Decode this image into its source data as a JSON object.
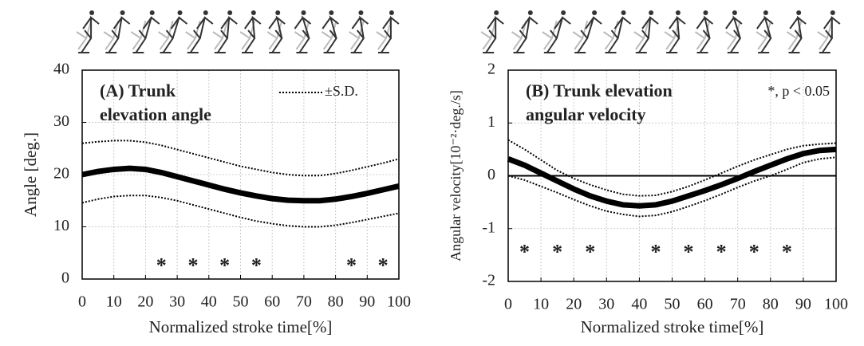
{
  "chart_data": [
    {
      "type": "line",
      "title": [
        "(A) Trunk",
        "elevation angle"
      ],
      "x_label": "Normalized stroke time[%]",
      "y_label": "Angle [deg.]",
      "x": [
        0,
        5,
        10,
        15,
        20,
        25,
        30,
        35,
        40,
        45,
        50,
        55,
        60,
        65,
        70,
        75,
        80,
        85,
        90,
        95,
        100
      ],
      "values": [
        20,
        20.6,
        21,
        21.2,
        21,
        20.4,
        19.6,
        18.8,
        18,
        17.2,
        16.5,
        15.9,
        15.4,
        15.1,
        15,
        15,
        15.3,
        15.8,
        16.4,
        17.1,
        17.8
      ],
      "color": "#000000",
      "band": {
        "name": "±S.D.",
        "color": "#000000",
        "upper": [
          26,
          26.3,
          26.5,
          26.5,
          26.2,
          25.6,
          24.8,
          24,
          23.2,
          22.4,
          21.6,
          21,
          20.4,
          20,
          19.8,
          19.8,
          20.2,
          20.8,
          21.5,
          22.2,
          23
        ],
        "lower": [
          14.6,
          15.3,
          15.8,
          16,
          16,
          15.6,
          15,
          14.2,
          13.4,
          12.6,
          11.8,
          11.1,
          10.6,
          10.2,
          10,
          10,
          10.3,
          10.8,
          11.4,
          12,
          12.6
        ]
      },
      "significance_marker": "*",
      "significance_x": [
        25,
        35,
        45,
        55,
        85,
        95
      ],
      "xlim": [
        0,
        100
      ],
      "xticks": [
        0,
        10,
        20,
        30,
        40,
        50,
        60,
        70,
        80,
        90,
        100
      ],
      "ylim": [
        0,
        40
      ],
      "yticks": [
        0,
        10,
        20,
        30,
        40
      ],
      "grid": true,
      "legend": "upper right"
    },
    {
      "type": "line",
      "title": [
        "(B) Trunk elevation",
        "angular velocity"
      ],
      "annotation": "*, p < 0.05",
      "x_label": "Normalized stroke time[%]",
      "y_label": "Angular velocity[10⁻²·deg./s]",
      "x": [
        0,
        5,
        10,
        15,
        20,
        25,
        30,
        35,
        40,
        45,
        50,
        55,
        60,
        65,
        70,
        75,
        80,
        85,
        90,
        95,
        100
      ],
      "values": [
        0.32,
        0.2,
        0.05,
        -0.1,
        -0.25,
        -0.38,
        -0.48,
        -0.55,
        -0.57,
        -0.55,
        -0.48,
        -0.38,
        -0.28,
        -0.17,
        -0.05,
        0.08,
        0.2,
        0.32,
        0.42,
        0.48,
        0.5
      ],
      "color": "#000000",
      "band": {
        "color": "#000000",
        "upper": [
          0.68,
          0.5,
          0.3,
          0.1,
          -0.05,
          -0.17,
          -0.27,
          -0.35,
          -0.38,
          -0.37,
          -0.3,
          -0.2,
          -0.08,
          0.05,
          0.18,
          0.3,
          0.4,
          0.5,
          0.57,
          0.6,
          0.62
        ],
        "lower": [
          0,
          -0.08,
          -0.2,
          -0.32,
          -0.45,
          -0.57,
          -0.67,
          -0.73,
          -0.77,
          -0.75,
          -0.68,
          -0.58,
          -0.47,
          -0.35,
          -0.22,
          -0.1,
          0,
          0.12,
          0.25,
          0.32,
          0.35
        ]
      },
      "significance_marker": "*",
      "significance_x": [
        5,
        15,
        25,
        45,
        55,
        65,
        75,
        85
      ],
      "xlim": [
        0,
        100
      ],
      "xticks": [
        0,
        10,
        20,
        30,
        40,
        50,
        60,
        70,
        80,
        90,
        100
      ],
      "ylim": [
        -2,
        2
      ],
      "yticks": [
        -2,
        -1,
        0,
        1,
        2
      ],
      "grid": true,
      "zero_line": true
    }
  ]
}
